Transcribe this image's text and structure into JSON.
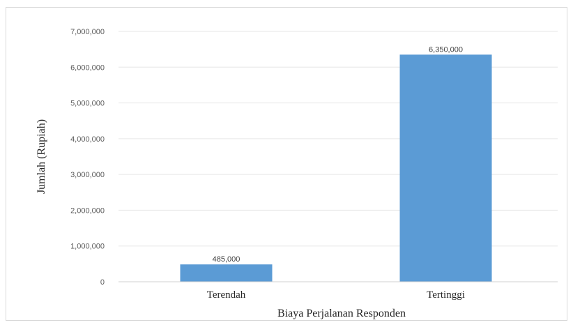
{
  "chart_data": {
    "type": "bar",
    "title": "",
    "xlabel": "Biaya Perjalanan Responden",
    "ylabel": "Jumlah (Rupiah)",
    "categories": [
      "Terendah",
      "Tertinggi"
    ],
    "values": [
      485000,
      6350000
    ],
    "data_labels": [
      "485,000",
      "6,350,000"
    ],
    "ylim": [
      0,
      7000000
    ],
    "yticks": [
      0,
      1000000,
      2000000,
      3000000,
      4000000,
      5000000,
      6000000,
      7000000
    ],
    "ytick_labels": [
      "0",
      "1,000,000",
      "2,000,000",
      "3,000,000",
      "4,000,000",
      "5,000,000",
      "6,000,000",
      "7,000,000"
    ],
    "grid": true,
    "legend": "none",
    "bar_color": "#5b9bd5",
    "grid_color": "#e6e6e6"
  }
}
